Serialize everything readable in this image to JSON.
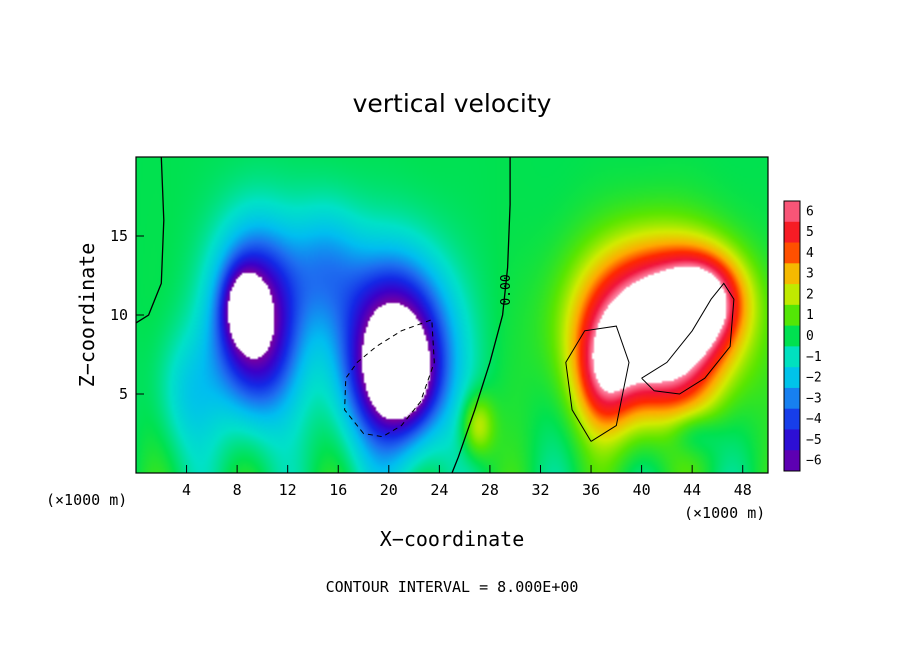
{
  "chart_data": {
    "type": "heatmap",
    "title": "vertical velocity",
    "xlabel": "X−coordinate",
    "ylabel": "Z−coordinate",
    "x_unit": "(×1000 m)",
    "y_unit": "(×1000 m)",
    "xlim": [
      0,
      50
    ],
    "ylim": [
      0,
      20
    ],
    "x_ticks": [
      4,
      8,
      12,
      16,
      20,
      24,
      28,
      32,
      36,
      40,
      44,
      48
    ],
    "y_ticks": [
      5,
      10,
      15
    ],
    "x_tick_labels": [
      "4",
      "8",
      "12",
      "16",
      "20",
      "24",
      "28",
      "32",
      "36",
      "40",
      "44",
      "48"
    ],
    "y_tick_labels": [
      "5",
      "10",
      "15"
    ],
    "contour_label": "0.00",
    "footer": "CONTOUR INTERVAL = 8.000E+00",
    "colorbar": {
      "labels": [
        "6",
        "5",
        "4",
        "3",
        "2",
        "1",
        "0",
        "−1",
        "−2",
        "−3",
        "−4",
        "−5",
        "−6"
      ],
      "values": [
        6,
        5,
        4,
        3,
        2,
        1,
        0,
        -1,
        -2,
        -3,
        -4,
        -5,
        -6
      ],
      "range": [
        -6,
        6
      ]
    },
    "features": [
      {
        "kind": "downdraft",
        "x": 9,
        "z": 9,
        "w": -8
      },
      {
        "kind": "downdraft",
        "x": 20,
        "z": 7,
        "w": -10
      },
      {
        "kind": "updraft",
        "x": 41,
        "z": 8,
        "w": 12
      }
    ]
  }
}
